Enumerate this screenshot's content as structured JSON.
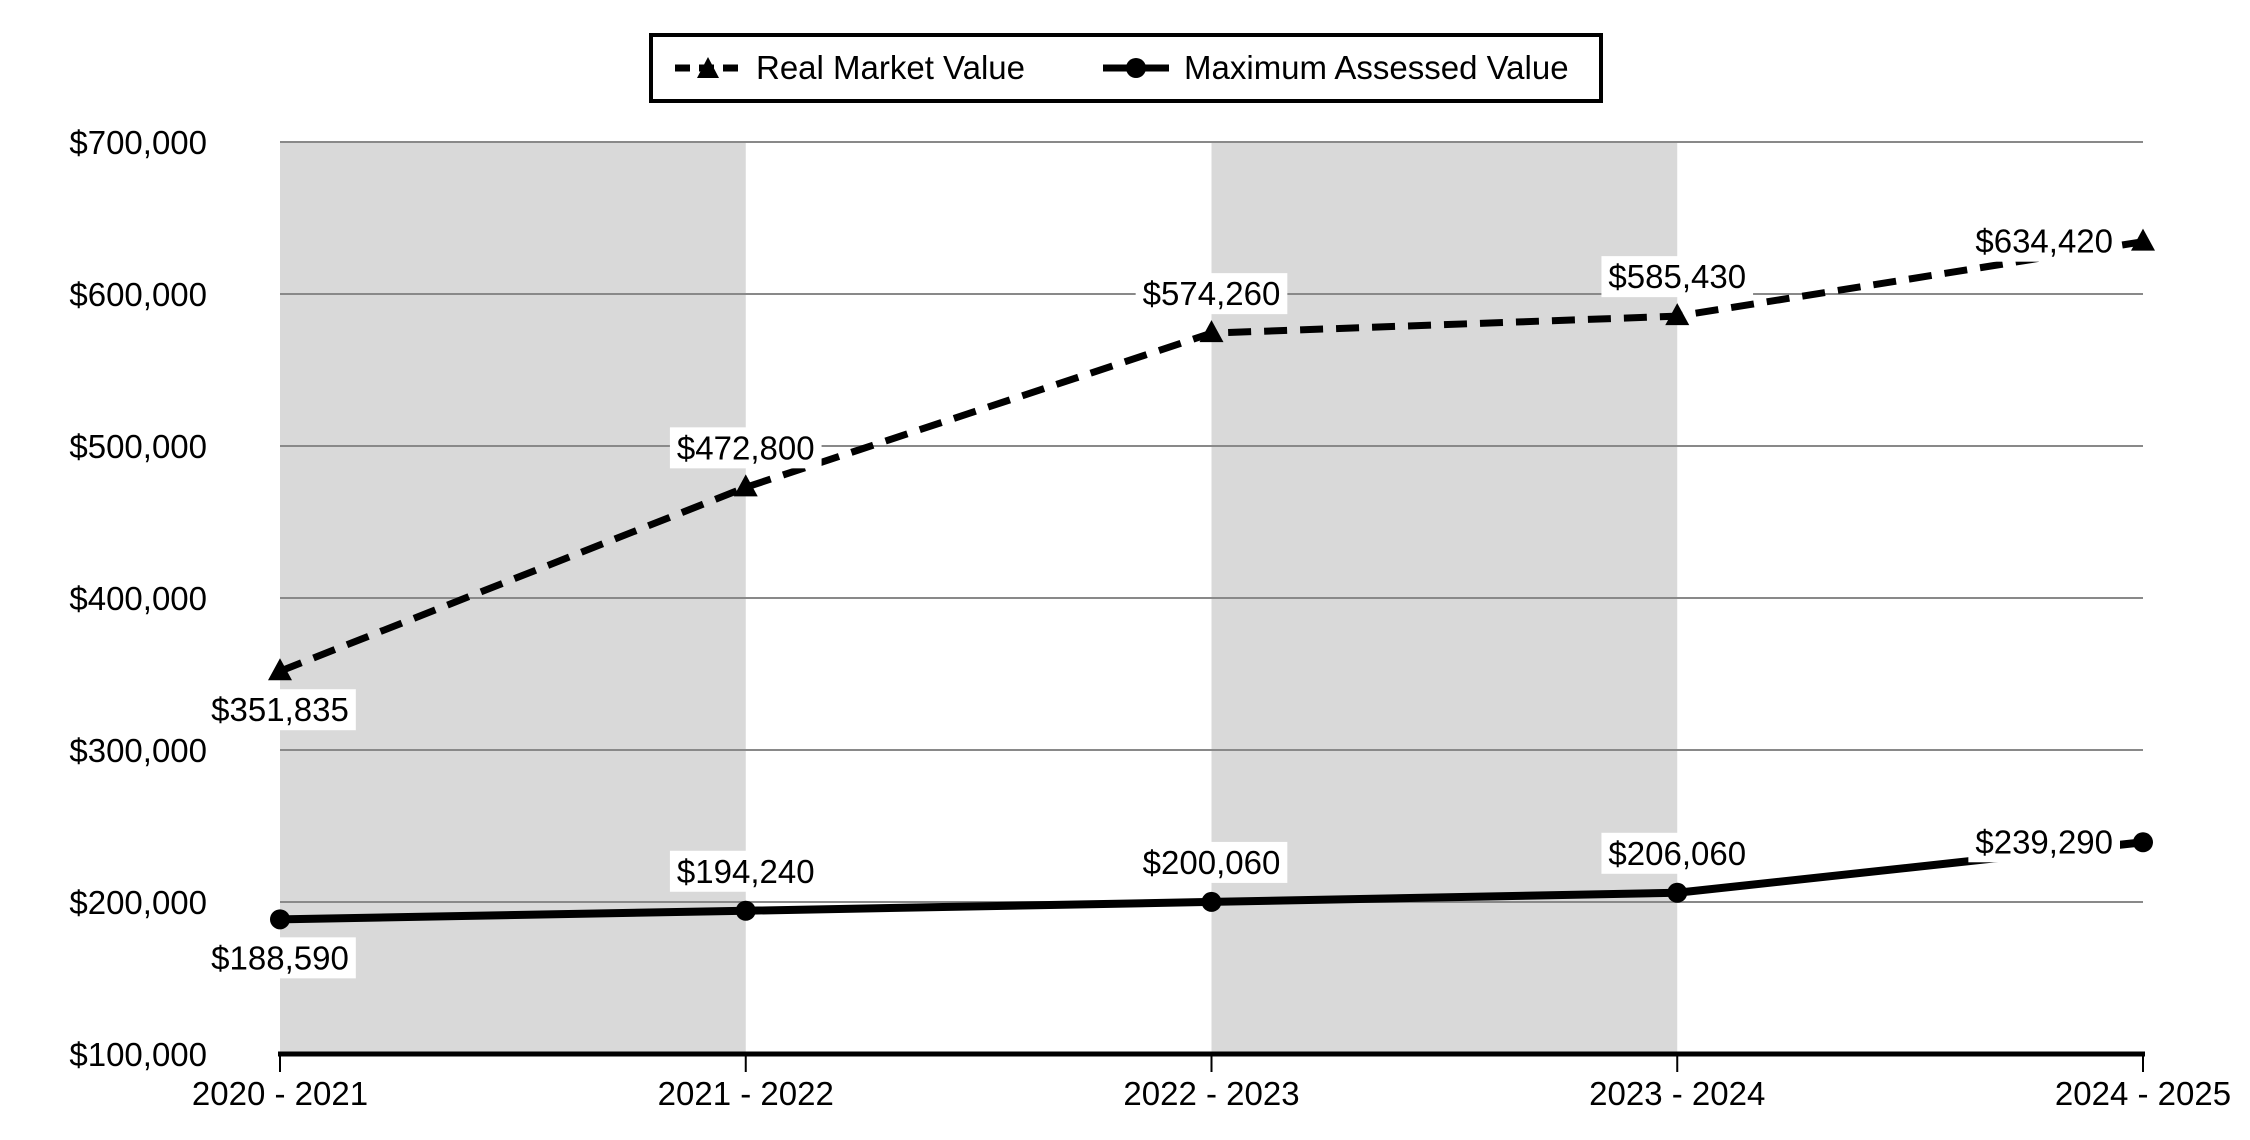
{
  "legend": {
    "items": [
      {
        "label": "Real Market Value",
        "marker": "triangle",
        "line_style": "dashed"
      },
      {
        "label": "Maximum Assessed Value",
        "marker": "circle",
        "line_style": "solid"
      }
    ]
  },
  "chart_data": {
    "type": "line",
    "title": "",
    "categories": [
      "2020 - 2021",
      "2021 - 2022",
      "2022 - 2023",
      "2023 - 2024",
      "2024 - 2025"
    ],
    "series": [
      {
        "name": "Real Market Value",
        "line_style": "dashed",
        "marker": "triangle",
        "color": "#000000",
        "values": [
          351835,
          472800,
          574260,
          585430,
          634420
        ],
        "data_labels": [
          "$351,835",
          "$472,800",
          "$574,260",
          "$585,430",
          "$634,420"
        ],
        "label_placement": [
          "below",
          "above",
          "above",
          "above",
          "left"
        ]
      },
      {
        "name": "Maximum Assessed Value",
        "line_style": "solid",
        "marker": "circle",
        "color": "#000000",
        "values": [
          188590,
          194240,
          200060,
          206060,
          239290
        ],
        "data_labels": [
          "$188,590",
          "$194,240",
          "$200,060",
          "$206,060",
          "$239,290"
        ],
        "label_placement": [
          "below",
          "above",
          "above",
          "above",
          "left"
        ]
      }
    ],
    "y_axis": {
      "min": 100000,
      "max": 700000,
      "step": 100000,
      "tick_labels": [
        "$100,000",
        "$200,000",
        "$300,000",
        "$400,000",
        "$500,000",
        "$600,000",
        "$700,000"
      ]
    },
    "ylim": [
      100000,
      700000
    ],
    "xlabel": "",
    "ylabel": "",
    "grid": true,
    "legend_position": "top",
    "plot_bands": {
      "fill": "#d9d9d9",
      "column_intervals": [
        [
          0,
          1
        ],
        [
          2,
          3
        ]
      ]
    }
  },
  "colors": {
    "series": "#000000",
    "band": "#d9d9d9",
    "gridline": "#898989",
    "axis": "#000000",
    "text": "#000000",
    "label_background": "#ffffff",
    "background": "#ffffff"
  }
}
